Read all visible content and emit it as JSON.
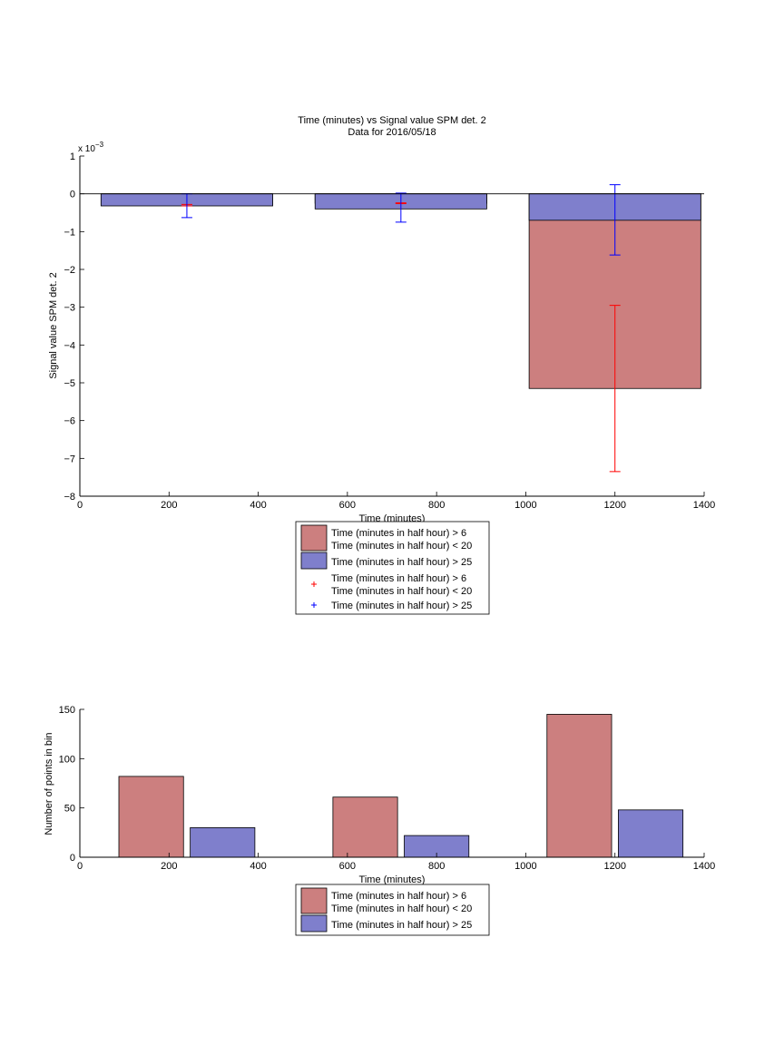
{
  "chart_data": [
    {
      "type": "bar",
      "title": "Time (minutes) vs Signal value SPM det. 2",
      "subtitle": "Data for 2016/05/18",
      "xlabel": "Time (minutes)",
      "ylabel": "Signal value SPM det. 2",
      "y_exponent_label": "x 10",
      "y_exponent_power": "−3",
      "xlim": [
        0,
        1400
      ],
      "ylim": [
        -8,
        1
      ],
      "xticks": [
        0,
        200,
        400,
        600,
        800,
        1000,
        1200,
        1400
      ],
      "xtick_labels": [
        "0",
        "200",
        "400",
        "600",
        "800",
        "1000",
        "1200",
        "1400"
      ],
      "yticks": [
        1,
        0,
        -1,
        -2,
        -3,
        -4,
        -5,
        -6,
        -7,
        -8
      ],
      "ytick_labels": [
        "1",
        "0",
        "−1",
        "−2",
        "−3",
        "−4",
        "−5",
        "−6",
        "−7",
        "−8"
      ],
      "bar_width": 385,
      "series": [
        {
          "name": "Time (minutes in half hour) > 6\nTime (minutes in half hour) < 20",
          "color": "#cc7f7f",
          "x": [
            240,
            720,
            1200
          ],
          "values": [
            -0.3,
            -0.25,
            -5.15
          ],
          "err_low": [
            -0.32,
            -0.26,
            -7.35
          ],
          "err_high": [
            -0.28,
            -0.24,
            -2.95
          ],
          "err_color": "#ff0000"
        },
        {
          "name": "Time (minutes in half hour) > 25",
          "color": "#7f7fcc",
          "x": [
            240,
            720,
            1200
          ],
          "values": [
            -0.32,
            -0.4,
            -0.7
          ],
          "err_low": [
            -0.63,
            -0.75,
            -1.62
          ],
          "err_high": [
            0.0,
            0.02,
            0.24
          ],
          "err_color": "#0000ff"
        }
      ],
      "legend": [
        {
          "kind": "patch",
          "color": "#cc7f7f",
          "lines": [
            "Time (minutes in half hour) > 6",
            "Time (minutes in half hour) < 20"
          ]
        },
        {
          "kind": "patch",
          "color": "#7f7fcc",
          "lines": [
            "Time (minutes in half hour) > 25"
          ]
        },
        {
          "kind": "marker",
          "color": "#ff0000",
          "lines": [
            "Time (minutes in half hour) > 6",
            "Time (minutes in half hour) < 20"
          ]
        },
        {
          "kind": "marker",
          "color": "#0000ff",
          "lines": [
            "Time (minutes in half hour) > 25"
          ]
        }
      ]
    },
    {
      "type": "bar",
      "xlabel": "Time (minutes)",
      "ylabel": "Number of points in bin",
      "xlim": [
        0,
        1400
      ],
      "ylim": [
        0,
        150
      ],
      "xticks": [
        0,
        200,
        400,
        600,
        800,
        1000,
        1200,
        1400
      ],
      "xtick_labels": [
        "0",
        "200",
        "400",
        "600",
        "800",
        "1000",
        "1200",
        "1400"
      ],
      "yticks": [
        0,
        50,
        100,
        150
      ],
      "ytick_labels": [
        "0",
        "50",
        "100",
        "150"
      ],
      "bar_width": 145,
      "series": [
        {
          "name": "Time (minutes in half hour) > 6\nTime (minutes in half hour) < 20",
          "color": "#cc7f7f",
          "x": [
            160,
            640,
            1120
          ],
          "values": [
            82,
            61,
            145
          ]
        },
        {
          "name": "Time (minutes in half hour) > 25",
          "color": "#7f7fcc",
          "x": [
            320,
            800,
            1280
          ],
          "values": [
            30,
            22,
            48
          ]
        }
      ],
      "legend": [
        {
          "kind": "patch",
          "color": "#cc7f7f",
          "lines": [
            "Time (minutes in half hour) > 6",
            "Time (minutes in half hour) < 20"
          ]
        },
        {
          "kind": "patch",
          "color": "#7f7fcc",
          "lines": [
            "Time (minutes in half hour) > 25"
          ]
        }
      ]
    }
  ]
}
